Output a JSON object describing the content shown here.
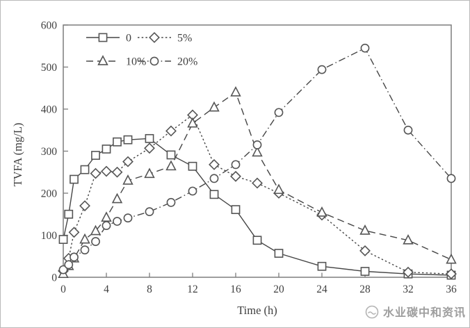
{
  "watermark": {
    "text": "水业碳中和资讯",
    "icon": "water-drop-logo"
  },
  "colors": {
    "line": "#454545",
    "marker_stroke": "#555555",
    "marker_fill": "#ffffff",
    "axis": "#7d7d7d",
    "text": "#3f3f3f",
    "watermark": "#9e9e9e"
  },
  "chart_data": {
    "type": "line",
    "title": "",
    "xlabel": "Time (h)",
    "ylabel": "TVFA (mg/L)",
    "xlim": [
      0,
      36
    ],
    "ylim": [
      0,
      600
    ],
    "xticks": [
      0,
      4,
      8,
      12,
      16,
      20,
      24,
      28,
      32,
      36
    ],
    "yticks": [
      0,
      100,
      200,
      300,
      400,
      500,
      600
    ],
    "grid": false,
    "legend_position": "top-left-inside",
    "legend_entries": [
      "0",
      "5%",
      "10%",
      "20%"
    ],
    "series": [
      {
        "name": "0",
        "marker": "square",
        "dash": "solid",
        "points": [
          [
            0,
            90
          ],
          [
            0.5,
            150
          ],
          [
            1,
            233
          ],
          [
            2,
            256
          ],
          [
            3,
            290
          ],
          [
            4,
            305
          ],
          [
            5,
            322
          ],
          [
            6,
            327
          ],
          [
            8,
            330
          ],
          [
            10,
            291
          ],
          [
            12,
            264
          ],
          [
            14,
            197
          ],
          [
            16,
            161
          ],
          [
            18,
            88
          ],
          [
            20,
            57
          ],
          [
            24,
            26
          ],
          [
            28,
            14
          ],
          [
            32,
            8
          ],
          [
            36,
            5
          ]
        ]
      },
      {
        "name": "5%",
        "marker": "diamond",
        "dash": "dotted",
        "points": [
          [
            0,
            15
          ],
          [
            0.5,
            45
          ],
          [
            1,
            107
          ],
          [
            2,
            170
          ],
          [
            3,
            247
          ],
          [
            4,
            252
          ],
          [
            5,
            250
          ],
          [
            6,
            275
          ],
          [
            8,
            307
          ],
          [
            10,
            348
          ],
          [
            12,
            386
          ],
          [
            14,
            268
          ],
          [
            16,
            240
          ],
          [
            18,
            224
          ],
          [
            20,
            200
          ],
          [
            24,
            148
          ],
          [
            28,
            63
          ],
          [
            32,
            12
          ],
          [
            36,
            8
          ]
        ]
      },
      {
        "name": "10%",
        "marker": "triangle",
        "dash": "dashed",
        "points": [
          [
            0,
            8
          ],
          [
            0.5,
            27
          ],
          [
            1,
            45
          ],
          [
            2,
            90
          ],
          [
            3,
            110
          ],
          [
            4,
            142
          ],
          [
            5,
            186
          ],
          [
            6,
            230
          ],
          [
            8,
            246
          ],
          [
            10,
            264
          ],
          [
            12,
            366
          ],
          [
            14,
            404
          ],
          [
            16,
            440
          ],
          [
            18,
            297
          ],
          [
            20,
            208
          ],
          [
            24,
            154
          ],
          [
            28,
            111
          ],
          [
            32,
            88
          ],
          [
            36,
            42
          ]
        ]
      },
      {
        "name": "20%",
        "marker": "circle",
        "dash": "dashdot",
        "points": [
          [
            0,
            18
          ],
          [
            0.5,
            30
          ],
          [
            1,
            48
          ],
          [
            2,
            65
          ],
          [
            3,
            85
          ],
          [
            4,
            123
          ],
          [
            5,
            133
          ],
          [
            6,
            141
          ],
          [
            8,
            156
          ],
          [
            10,
            178
          ],
          [
            12,
            205
          ],
          [
            14,
            235
          ],
          [
            16,
            268
          ],
          [
            18,
            315
          ],
          [
            20,
            392
          ],
          [
            24,
            494
          ],
          [
            28,
            545
          ],
          [
            32,
            350
          ],
          [
            36,
            235
          ]
        ]
      }
    ]
  }
}
